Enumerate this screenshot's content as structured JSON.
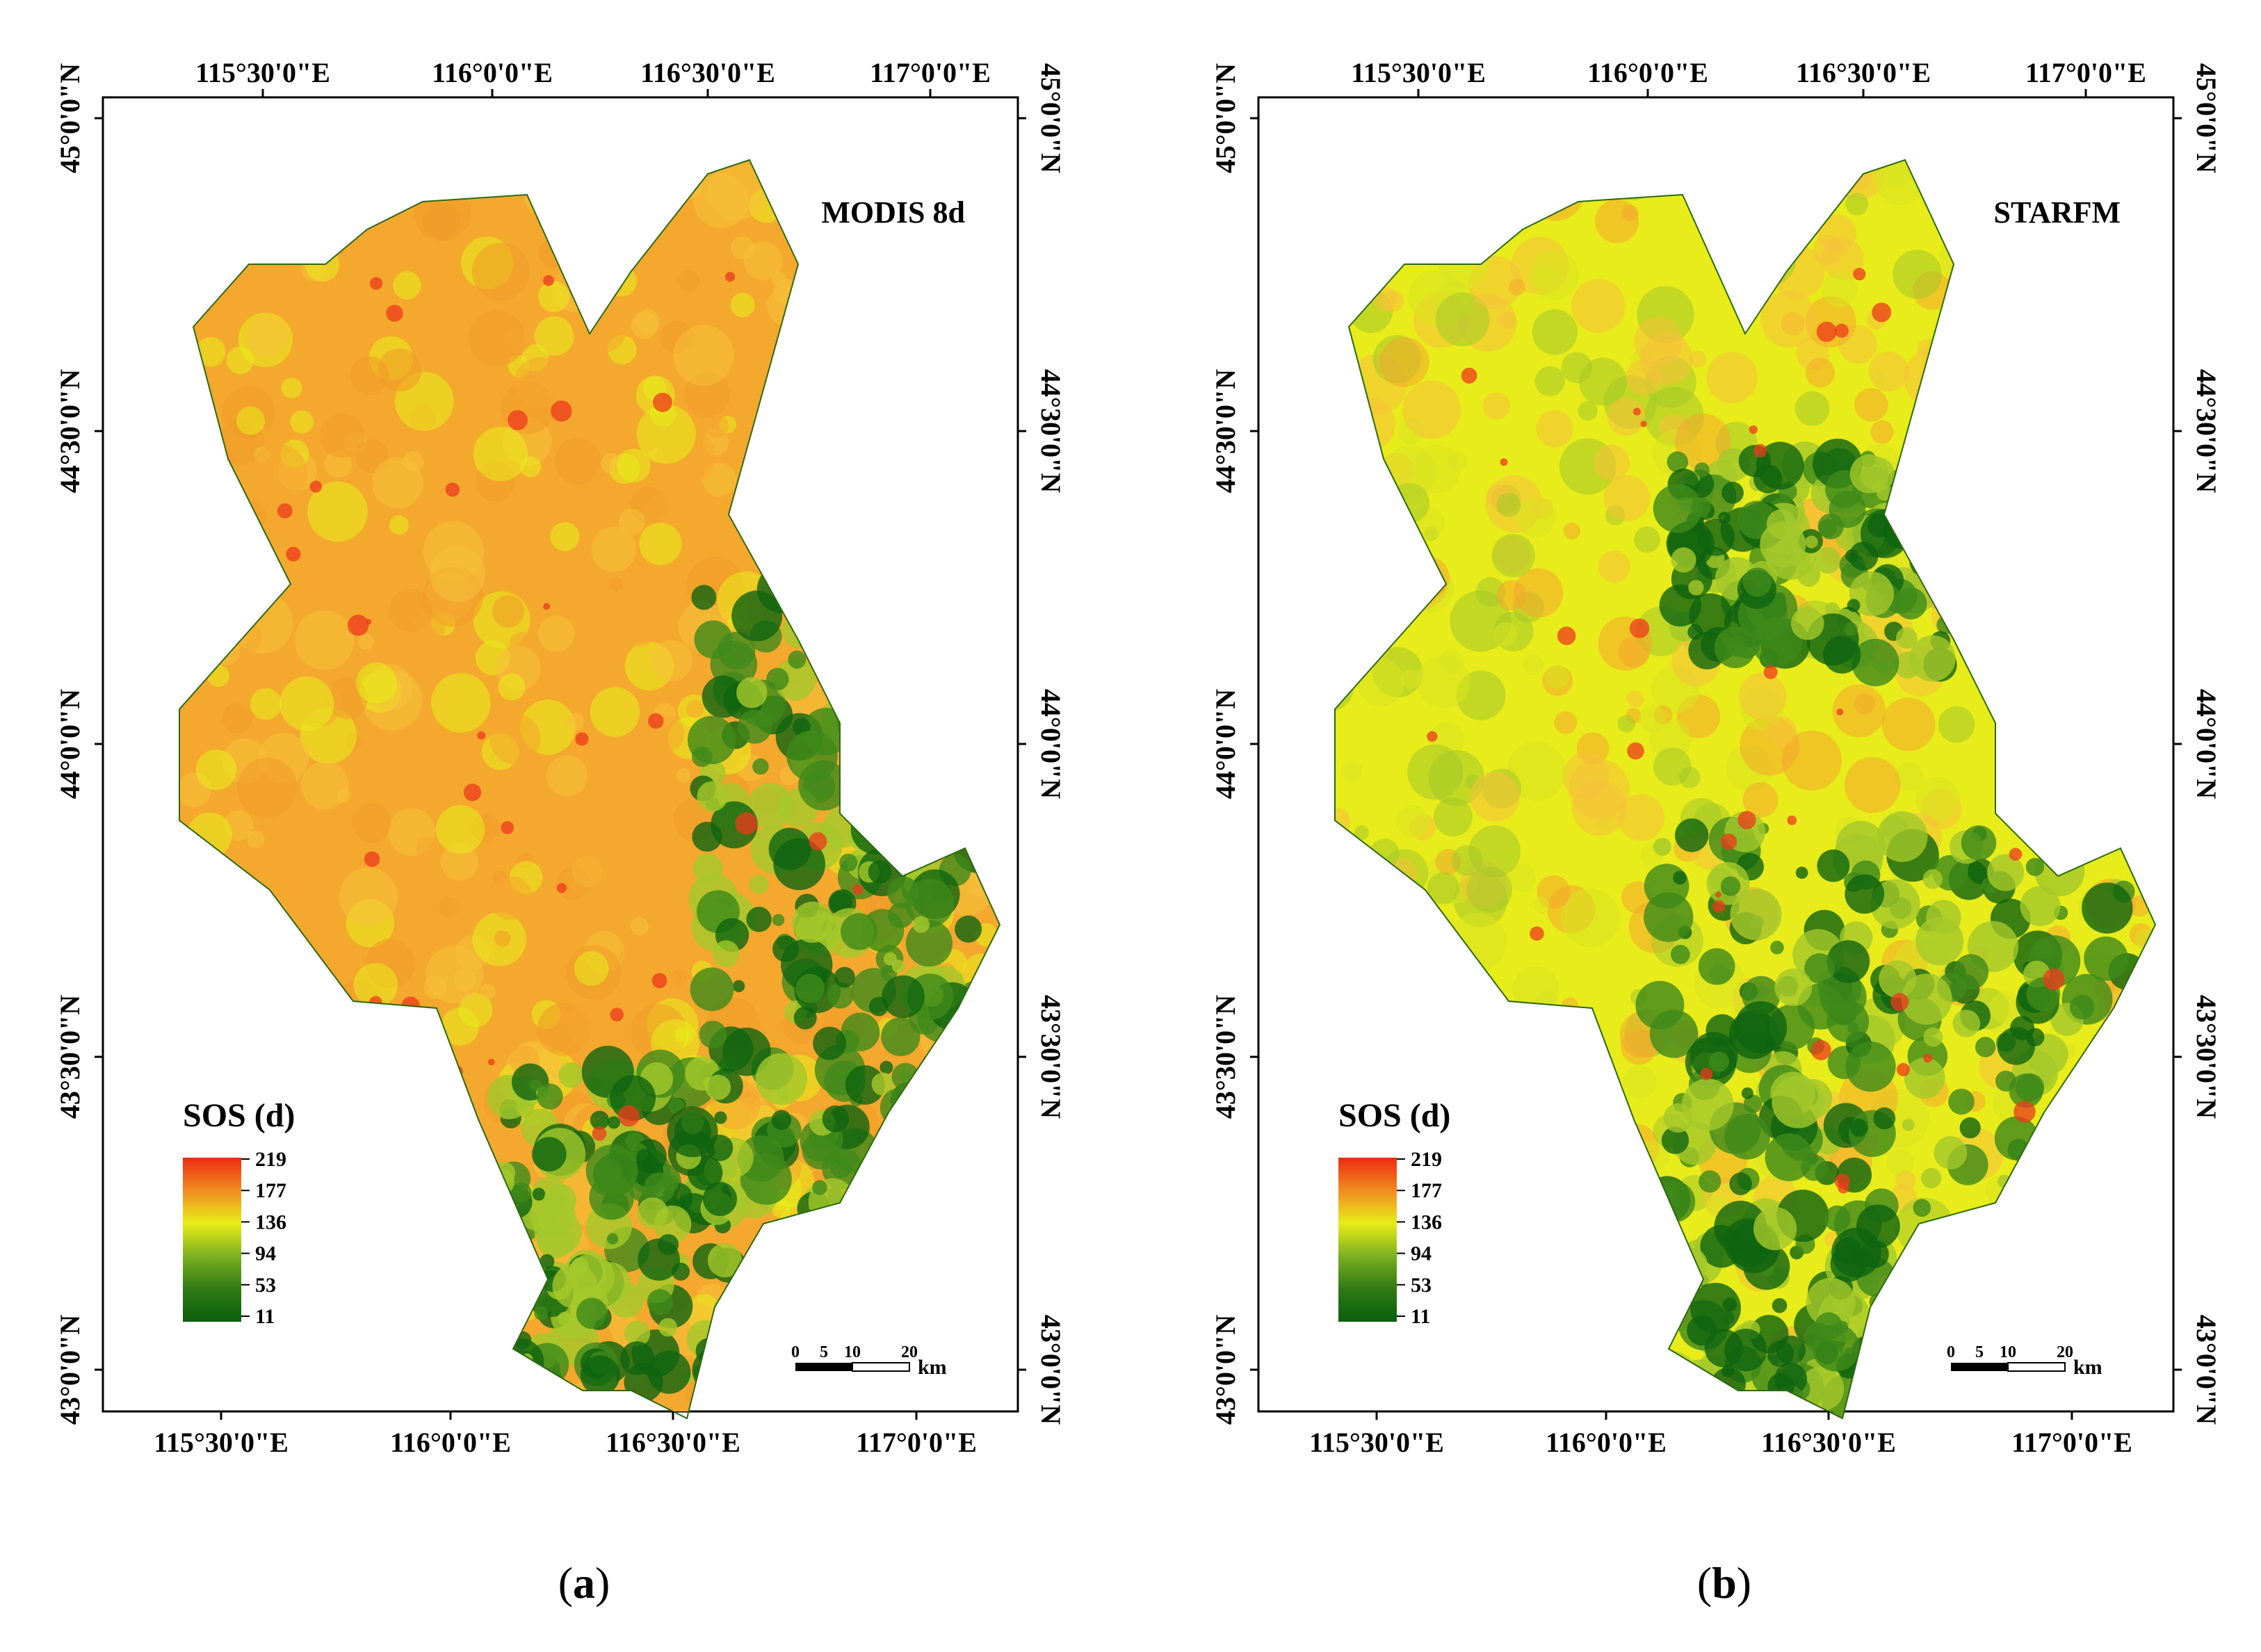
{
  "palette": {
    "orange": "#f4a82e",
    "light_orange": "#f6c13a",
    "yellow": "#e8ec1a",
    "light_green": "#a4c82a",
    "green": "#3e8a1a",
    "dark_green": "#0f6410",
    "red": "#ee3a1c"
  },
  "lon_labels": [
    "115°30'0\"E",
    "116°0'0\"E",
    "116°30'0\"E",
    "117°0'0\"E"
  ],
  "lat_labels": [
    "45°0'0\"N",
    "44°30'0\"N",
    "44°0'0\"N",
    "43°30'0\"N",
    "43°0'0\"N"
  ],
  "panels": [
    {
      "title": "MODIS 8d",
      "caption_letter": "a",
      "dominant": "orange",
      "green_patches": "east"
    },
    {
      "title": "STARFM",
      "caption_letter": "b",
      "dominant": "yellow",
      "green_patches": "center"
    }
  ],
  "legend": {
    "title": "SOS (d)",
    "values": [
      "219",
      "177",
      "136",
      "94",
      "53",
      "11"
    ],
    "colors": [
      "#ee2a10",
      "#f08c20",
      "#e8ec18",
      "#7cb020",
      "#2e7a14",
      "#0a5e0c"
    ]
  },
  "scale_bar": {
    "ticks": [
      "0",
      "5",
      "10",
      "20"
    ],
    "unit": "km"
  },
  "caption_open": "(",
  "caption_close": ")"
}
